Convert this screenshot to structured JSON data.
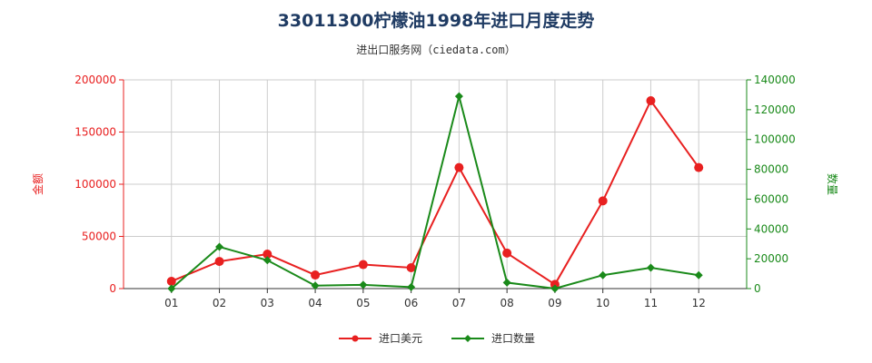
{
  "title": "33011300柠檬油1998年进口月度走势",
  "subtitle": "进出口服务网（ciedata.com）",
  "colors": {
    "series_usd": "#e82020",
    "series_qty": "#1a8a1a",
    "title": "#1f3b63"
  },
  "chart_data": {
    "type": "line",
    "categories": [
      "01",
      "02",
      "03",
      "04",
      "05",
      "06",
      "07",
      "08",
      "09",
      "10",
      "11",
      "12"
    ],
    "y_left": {
      "label": "金额",
      "ylim": [
        0,
        200000
      ],
      "ticks": [
        "0",
        "50000",
        "100000",
        "150000",
        "200000"
      ]
    },
    "y_right": {
      "label": "数量",
      "ylim": [
        0,
        140000
      ],
      "ticks": [
        "0",
        "20000",
        "40000",
        "60000",
        "80000",
        "100000",
        "120000",
        "140000"
      ]
    },
    "series": [
      {
        "name": "进口美元",
        "axis": "left",
        "color": "#e82020",
        "values": [
          7000,
          26000,
          33000,
          13000,
          23000,
          20000,
          116000,
          34000,
          4000,
          84000,
          180000,
          116000
        ]
      },
      {
        "name": "进口数量",
        "axis": "right",
        "color": "#1a8a1a",
        "values": [
          0,
          28000,
          19000,
          2000,
          2500,
          1000,
          129000,
          4000,
          0,
          9000,
          14000,
          9000
        ]
      }
    ],
    "grid": true,
    "legend_position": "bottom"
  }
}
